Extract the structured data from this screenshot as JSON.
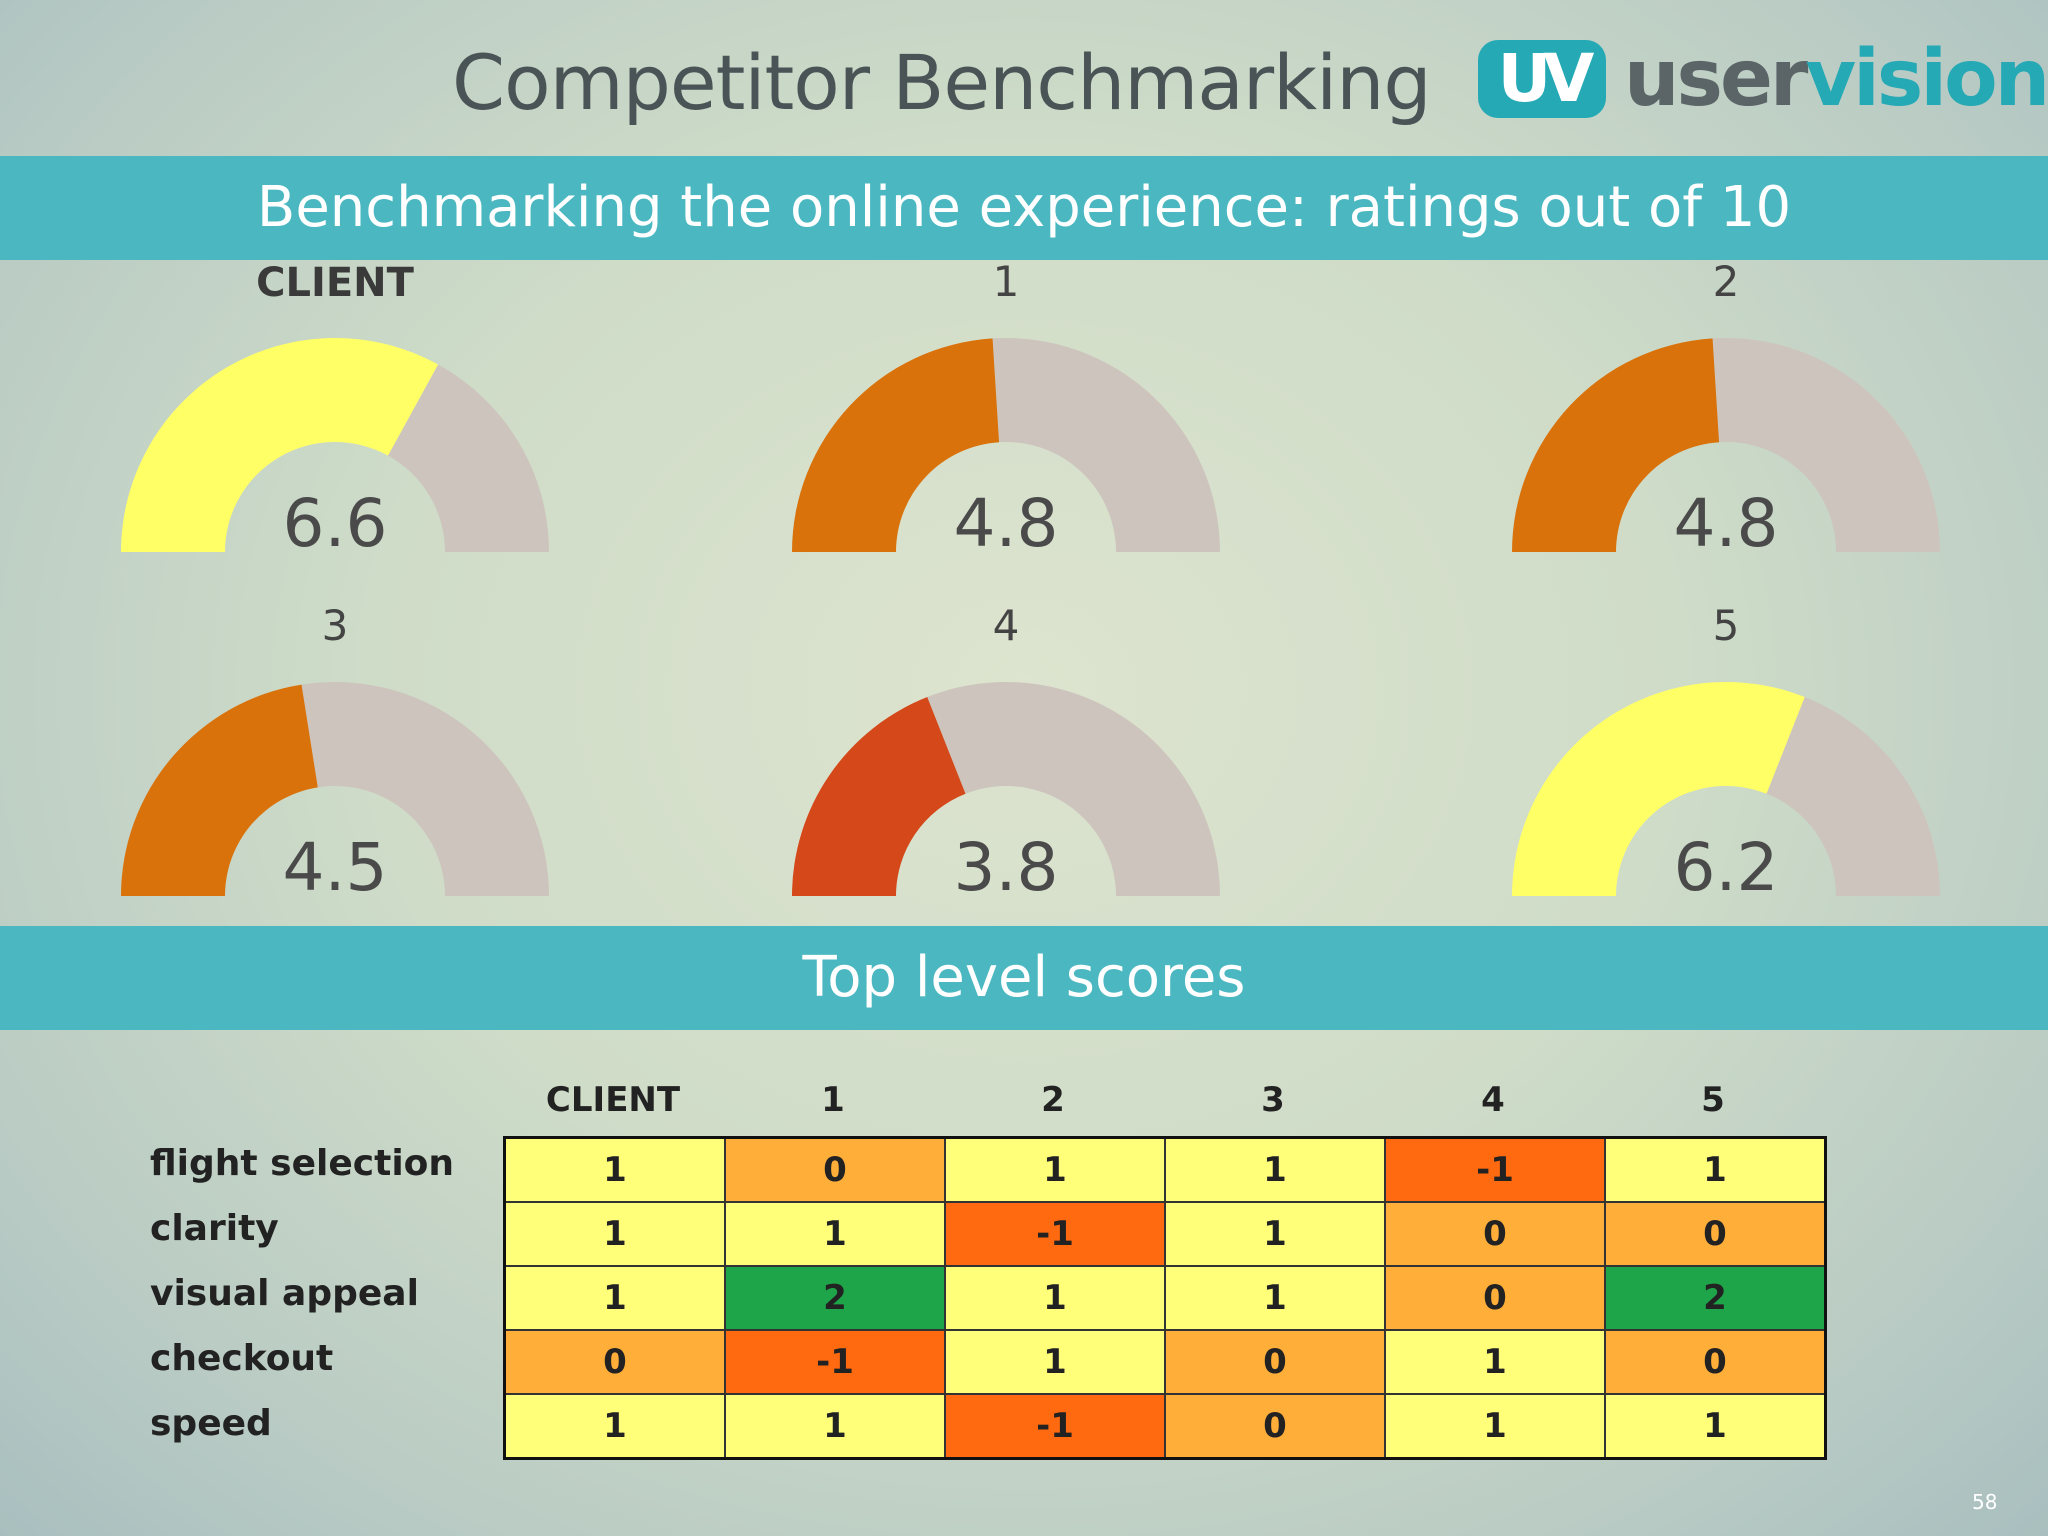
{
  "title": "Competitor Benchmarking",
  "logo": {
    "badge": "UV",
    "text_part1": "user",
    "text_part2": "vision"
  },
  "band1": "Benchmarking the online experience: ratings out of 10",
  "band2": "Top level scores",
  "page_number": "58",
  "colors": {
    "band": "#4bb8c1",
    "gauge_track": "#cdc5bd",
    "high": "#ffff66",
    "mid": "#d9720b",
    "low": "#d4481a",
    "cell_1": "#ffff7a",
    "cell_0": "#ffae3a",
    "cell_neg1": "#ff6a10",
    "cell_2": "#1ea54a"
  },
  "chart_data": [
    {
      "type": "gauge",
      "title": "Benchmarking the online experience: ratings out of 10",
      "max": 10,
      "gauges": [
        {
          "label": "CLIENT",
          "value": 6.6,
          "display": "6.6",
          "color": "#ffff66"
        },
        {
          "label": "1",
          "value": 4.8,
          "display": "4.8",
          "color": "#d9720b"
        },
        {
          "label": "2",
          "value": 4.8,
          "display": "4.8",
          "color": "#d9720b"
        },
        {
          "label": "3",
          "value": 4.5,
          "display": "4.5",
          "color": "#d9720b"
        },
        {
          "label": "4",
          "value": 3.8,
          "display": "3.8",
          "color": "#d4481a"
        },
        {
          "label": "5",
          "value": 6.2,
          "display": "6.2",
          "color": "#ffff66"
        }
      ]
    },
    {
      "type": "heatmap",
      "title": "Top level scores",
      "columns": [
        "CLIENT",
        "1",
        "2",
        "3",
        "4",
        "5"
      ],
      "rows": [
        "flight selection",
        "clarity",
        "visual appeal",
        "checkout",
        "speed"
      ],
      "values": [
        [
          "1",
          "0",
          "1",
          "1",
          "-1",
          "1"
        ],
        [
          "1",
          "1",
          "-1",
          "1",
          "0",
          "0"
        ],
        [
          "1",
          "2",
          "1",
          "1",
          "0",
          "2"
        ],
        [
          "0",
          "-1",
          "1",
          "0",
          "1",
          "0"
        ],
        [
          "1",
          "1",
          "-1",
          "0",
          "1",
          "1"
        ]
      ]
    }
  ]
}
